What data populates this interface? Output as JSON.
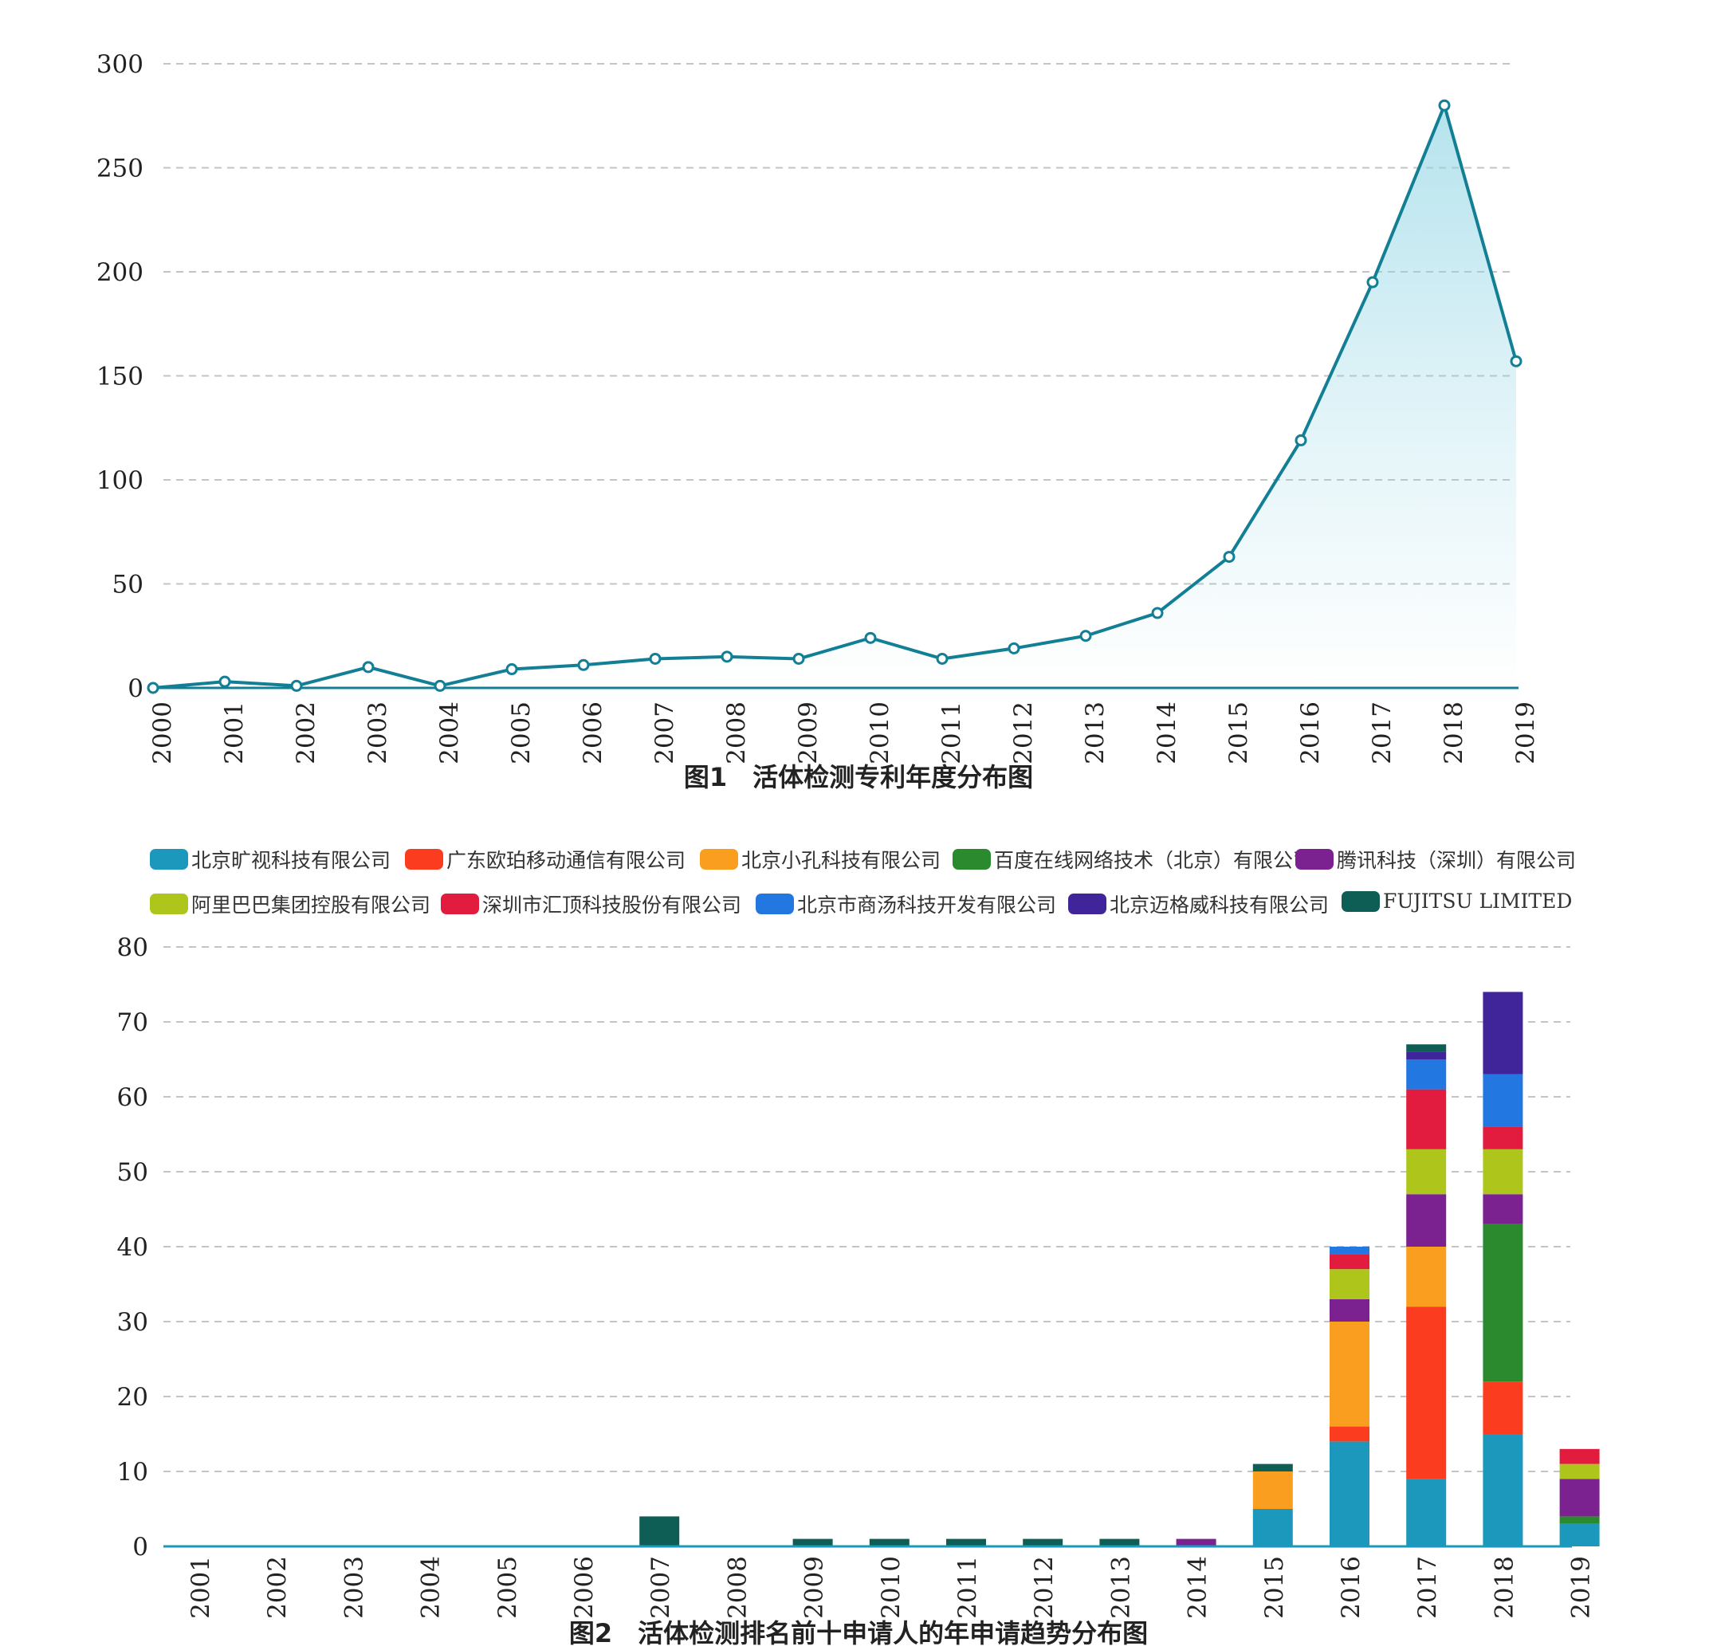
{
  "chart_data": [
    {
      "type": "area",
      "title": "图1　活体检测专利年度分布图",
      "categories": [
        "2000",
        "2001",
        "2002",
        "2003",
        "2004",
        "2005",
        "2006",
        "2007",
        "2008",
        "2009",
        "2010",
        "2011",
        "2012",
        "2013",
        "2014",
        "2015",
        "2016",
        "2017",
        "2018",
        "2019"
      ],
      "values": [
        0,
        3,
        1,
        10,
        1,
        9,
        11,
        14,
        15,
        14,
        24,
        14,
        19,
        25,
        36,
        63,
        119,
        195,
        280,
        157
      ],
      "ylim": [
        0,
        300
      ],
      "yticks": [
        0,
        50,
        100,
        150,
        200,
        250,
        300
      ],
      "grid": true,
      "colors": {
        "line": "#137f95",
        "fill": "#8ed4e4"
      }
    },
    {
      "type": "bar",
      "stacked": true,
      "title": "图2　活体检测排名前十申请人的年申请趋势分布图",
      "categories": [
        "2001",
        "2002",
        "2003",
        "2004",
        "2005",
        "2006",
        "2007",
        "2008",
        "2009",
        "2010",
        "2011",
        "2012",
        "2013",
        "2014",
        "2015",
        "2016",
        "2017",
        "2018",
        "2019"
      ],
      "ylim": [
        0,
        80
      ],
      "yticks": [
        0,
        10,
        20,
        30,
        40,
        50,
        60,
        70,
        80
      ],
      "grid": true,
      "legend_position": "top",
      "series": [
        {
          "name": "北京旷视科技有限公司",
          "color": "#1b98bb",
          "values": [
            0,
            0,
            0,
            0,
            0,
            0,
            0,
            0,
            0,
            0,
            0,
            0,
            0,
            0,
            5,
            14,
            9,
            15,
            3
          ]
        },
        {
          "name": "广东欧珀移动通信有限公司",
          "color": "#fc3c1e",
          "values": [
            0,
            0,
            0,
            0,
            0,
            0,
            0,
            0,
            0,
            0,
            0,
            0,
            0,
            0,
            0,
            2,
            23,
            7,
            0
          ]
        },
        {
          "name": "北京小孔科技有限公司",
          "color": "#f99e1e",
          "values": [
            0,
            0,
            0,
            0,
            0,
            0,
            0,
            0,
            0,
            0,
            0,
            0,
            0,
            0,
            5,
            14,
            8,
            0,
            0
          ]
        },
        {
          "name": "百度在线网络技术（北京）有限公司",
          "color": "#2b8a2e",
          "values": [
            0,
            0,
            0,
            0,
            0,
            0,
            0,
            0,
            0,
            0,
            0,
            0,
            0,
            0,
            0,
            0,
            0,
            21,
            1
          ]
        },
        {
          "name": "腾讯科技（深圳）有限公司",
          "color": "#7b2190",
          "values": [
            0,
            0,
            0,
            0,
            0,
            0,
            0,
            0,
            0,
            0,
            0,
            0,
            0,
            1,
            0,
            3,
            7,
            4,
            5
          ]
        },
        {
          "name": "阿里巴巴集团控股有限公司",
          "color": "#aec61c",
          "values": [
            0,
            0,
            0,
            0,
            0,
            0,
            0,
            0,
            0,
            0,
            0,
            0,
            0,
            0,
            0,
            4,
            6,
            6,
            2
          ]
        },
        {
          "name": "深圳市汇顶科技股份有限公司",
          "color": "#e21c3e",
          "values": [
            0,
            0,
            0,
            0,
            0,
            0,
            0,
            0,
            0,
            0,
            0,
            0,
            0,
            0,
            0,
            2,
            8,
            3,
            2
          ]
        },
        {
          "name": "北京市商汤科技开发有限公司",
          "color": "#2277e0",
          "values": [
            0,
            0,
            0,
            0,
            0,
            0,
            0,
            0,
            0,
            0,
            0,
            0,
            0,
            0,
            0,
            1,
            4,
            7,
            0
          ]
        },
        {
          "name": "北京迈格威科技有限公司",
          "color": "#40249a",
          "values": [
            0,
            0,
            0,
            0,
            0,
            0,
            0,
            0,
            0,
            0,
            0,
            0,
            0,
            0,
            0,
            0,
            1,
            11,
            0
          ]
        },
        {
          "name": "FUJITSU LIMITED",
          "color": "#0f5e55",
          "values": [
            0,
            0,
            0,
            0,
            0,
            0,
            4,
            0,
            1,
            1,
            1,
            1,
            1,
            0,
            1,
            0,
            1,
            0,
            0
          ]
        }
      ]
    }
  ]
}
